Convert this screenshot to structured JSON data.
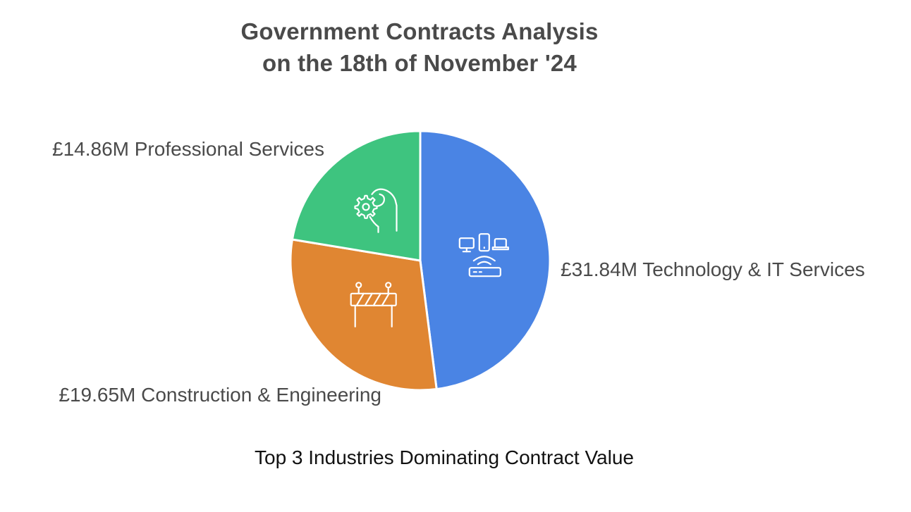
{
  "title": {
    "line1": "Government Contracts Analysis",
    "line2": "on the 18th of November '24"
  },
  "subtitle": "Top 3 Industries Dominating Contract Value",
  "chart_data": {
    "type": "pie",
    "unit": "£M",
    "slices": [
      {
        "label": "£31.84M Technology & IT Services",
        "category": "Technology & IT Services",
        "value": 31.84,
        "color": "#4a84e4",
        "icon": "devices-router-icon"
      },
      {
        "label": "£19.65M Construction & Engineering",
        "category": "Construction & Engineering",
        "value": 19.65,
        "color": "#e08632",
        "icon": "road-barrier-icon"
      },
      {
        "label": "£14.86M Professional Services",
        "category": "Professional Services",
        "value": 14.86,
        "color": "#3ec47f",
        "icon": "hand-gear-icon"
      }
    ]
  }
}
